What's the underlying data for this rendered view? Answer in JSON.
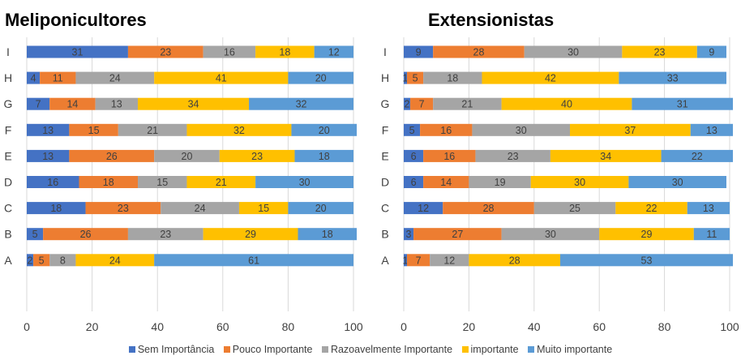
{
  "chart_data": [
    {
      "type": "bar",
      "stacked": true,
      "orientation": "horizontal",
      "title": "Meliponicultores",
      "categories": [
        "A",
        "B",
        "C",
        "D",
        "E",
        "F",
        "G",
        "H",
        "I"
      ],
      "series": [
        {
          "name": "Sem Importância",
          "values": [
            2,
            5,
            18,
            16,
            13,
            13,
            7,
            4,
            31
          ]
        },
        {
          "name": "Pouco Importante",
          "values": [
            5,
            26,
            23,
            18,
            26,
            15,
            14,
            11,
            23
          ]
        },
        {
          "name": "Razoavelmente Importante",
          "values": [
            8,
            23,
            24,
            15,
            20,
            21,
            13,
            24,
            16
          ]
        },
        {
          "name": "importante",
          "values": [
            24,
            29,
            15,
            21,
            23,
            32,
            34,
            41,
            18
          ]
        },
        {
          "name": "Muito importante",
          "values": [
            61,
            18,
            20,
            30,
            18,
            20,
            32,
            20,
            12
          ]
        }
      ],
      "xlim": [
        0,
        100
      ],
      "xticks": [
        0,
        20,
        40,
        60,
        80,
        100
      ],
      "grid": true
    },
    {
      "type": "bar",
      "stacked": true,
      "orientation": "horizontal",
      "title": "Extensionistas",
      "categories": [
        "A",
        "B",
        "C",
        "D",
        "E",
        "F",
        "G",
        "H",
        "I"
      ],
      "series": [
        {
          "name": "Sem Importância",
          "values": [
            1,
            3,
            12,
            6,
            6,
            5,
            2,
            1,
            9
          ]
        },
        {
          "name": "Pouco Importante",
          "values": [
            7,
            27,
            28,
            14,
            16,
            16,
            7,
            5,
            28
          ]
        },
        {
          "name": "Razoavelmente Importante",
          "values": [
            12,
            30,
            25,
            19,
            23,
            30,
            21,
            18,
            30
          ]
        },
        {
          "name": "importante",
          "values": [
            28,
            29,
            22,
            30,
            34,
            37,
            40,
            42,
            23
          ]
        },
        {
          "name": "Muito importante",
          "values": [
            53,
            11,
            13,
            30,
            22,
            13,
            31,
            33,
            9
          ]
        }
      ],
      "xlim": [
        0,
        100
      ],
      "xticks": [
        0,
        20,
        40,
        60,
        80,
        100
      ],
      "grid": true
    }
  ],
  "colors": [
    "#4472C4",
    "#ED7D31",
    "#A5A5A5",
    "#FFC000",
    "#5B9BD5"
  ],
  "legend": {
    "placement": "bottom",
    "items": [
      {
        "label": "Sem Importância",
        "color": "#4472C4"
      },
      {
        "label": "Pouco Importante",
        "color": "#ED7D31"
      },
      {
        "label": "Razoavelmente Importante",
        "color": "#A5A5A5"
      },
      {
        "label": "importante",
        "color": "#FFC000"
      },
      {
        "label": "Muito importante",
        "color": "#5B9BD5"
      }
    ]
  }
}
